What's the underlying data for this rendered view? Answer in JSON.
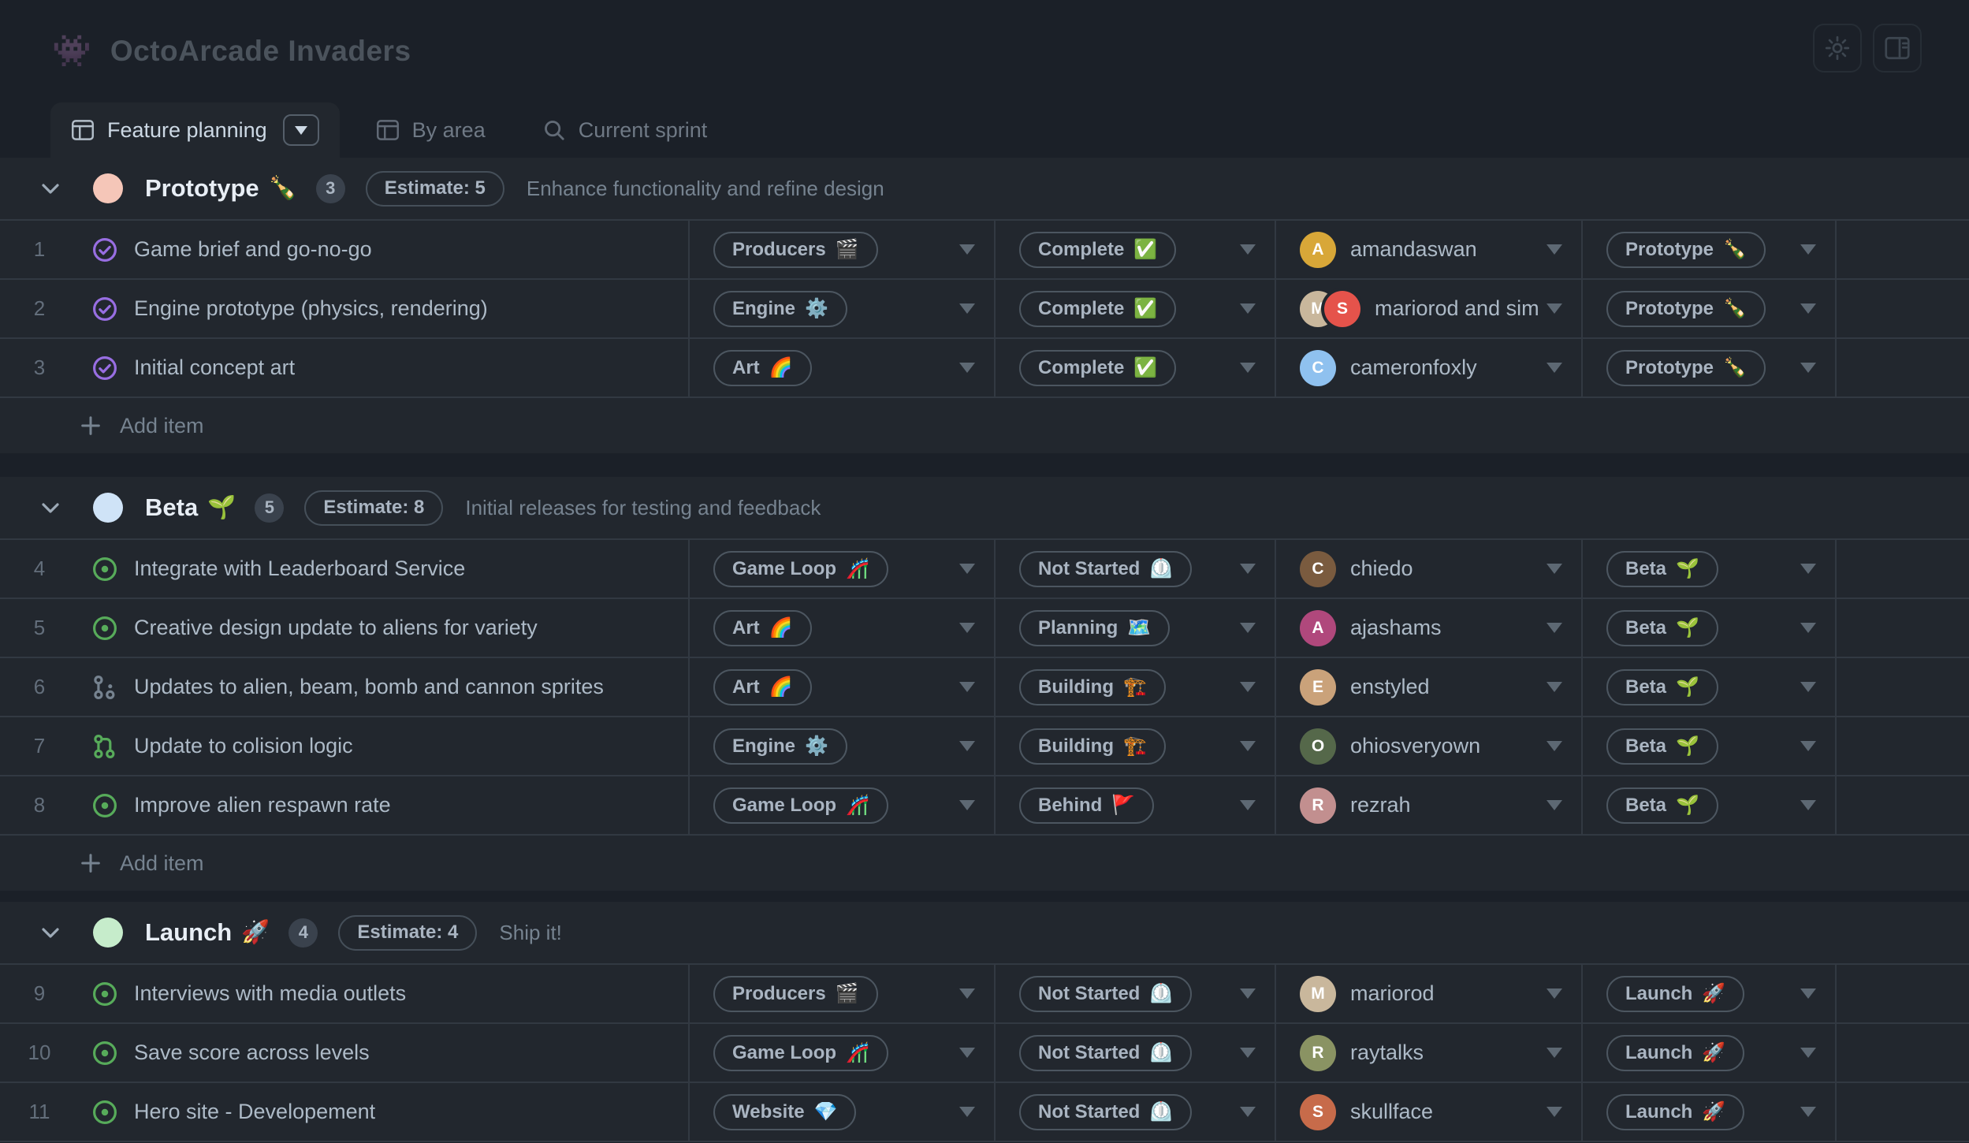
{
  "header": {
    "logo_emoji": "👾",
    "title": "OctoArcade Invaders"
  },
  "toolbar": {
    "buttons": [
      {
        "icon": "gear-icon"
      },
      {
        "icon": "side-panel-icon"
      }
    ]
  },
  "tabs": [
    {
      "label": "Feature planning",
      "icon": "table-icon",
      "active": true,
      "has_dropdown": true
    },
    {
      "label": "By area",
      "icon": "table-icon",
      "active": false
    },
    {
      "label": "Current sprint",
      "icon": "search-icon",
      "active": false
    }
  ],
  "labels": {
    "add_item": "Add item"
  },
  "colors": {
    "page_bg": "#1b2028",
    "surface": "#22272e",
    "divider": "#323942",
    "pill_border": "#4c5660",
    "text_primary": "#adbac7",
    "text_muted": "#768390",
    "issue_closed": "#986ee2",
    "issue_open": "#57ab5a",
    "pr_draft": "#768390"
  },
  "groups": [
    {
      "name": "Prototype",
      "emoji": "🍾",
      "dot_color": "#f5c6b8",
      "count": "3",
      "estimate_label": "Estimate: 5",
      "description": "Enhance functionality and refine design",
      "show_add_item": true,
      "rows": [
        {
          "num": "1",
          "state_icon": "issue-closed",
          "title": "Game brief and go-no-go",
          "team": {
            "label": "Producers",
            "emoji": "🎬"
          },
          "status": {
            "label": "Complete",
            "emoji": "✅"
          },
          "assignee": {
            "label": "amandaswan",
            "avatars": [
              {
                "initial": "A",
                "color": "#d8a738"
              }
            ]
          },
          "stage": {
            "label": "Prototype",
            "emoji": "🍾"
          }
        },
        {
          "num": "2",
          "state_icon": "issue-closed",
          "title": "Engine prototype (physics, rendering)",
          "team": {
            "label": "Engine",
            "emoji": "⚙️"
          },
          "status": {
            "label": "Complete",
            "emoji": "✅"
          },
          "assignee": {
            "label": "mariorod and sim",
            "avatars": [
              {
                "initial": "M",
                "color": "#c9b79c"
              },
              {
                "initial": "S",
                "color": "#e5534b"
              }
            ]
          },
          "stage": {
            "label": "Prototype",
            "emoji": "🍾"
          }
        },
        {
          "num": "3",
          "state_icon": "issue-closed",
          "title": "Initial concept art",
          "team": {
            "label": "Art",
            "emoji": "🌈"
          },
          "status": {
            "label": "Complete",
            "emoji": "✅"
          },
          "assignee": {
            "label": "cameronfoxly",
            "avatars": [
              {
                "initial": "C",
                "color": "#8fc1ef"
              }
            ]
          },
          "stage": {
            "label": "Prototype",
            "emoji": "🍾"
          }
        }
      ]
    },
    {
      "name": "Beta",
      "emoji": "🌱",
      "dot_color": "#cfe3f7",
      "count": "5",
      "estimate_label": "Estimate: 8",
      "description": "Initial releases for testing and feedback",
      "show_add_item": true,
      "rows": [
        {
          "num": "4",
          "state_icon": "issue-open",
          "title": "Integrate with Leaderboard Service",
          "team": {
            "label": "Game Loop",
            "emoji": "🎢"
          },
          "status": {
            "label": "Not Started",
            "emoji": "⏲️"
          },
          "assignee": {
            "label": "chiedo",
            "avatars": [
              {
                "initial": "C",
                "color": "#7a5b3f"
              }
            ]
          },
          "stage": {
            "label": "Beta",
            "emoji": "🌱"
          }
        },
        {
          "num": "5",
          "state_icon": "issue-open",
          "title": "Creative design update to aliens for variety",
          "team": {
            "label": "Art",
            "emoji": "🌈"
          },
          "status": {
            "label": "Planning",
            "emoji": "🗺️"
          },
          "assignee": {
            "label": "ajashams",
            "avatars": [
              {
                "initial": "A",
                "color": "#b0487c"
              }
            ]
          },
          "stage": {
            "label": "Beta",
            "emoji": "🌱"
          }
        },
        {
          "num": "6",
          "state_icon": "pr-draft",
          "title": "Updates to alien, beam, bomb and cannon sprites",
          "team": {
            "label": "Art",
            "emoji": "🌈"
          },
          "status": {
            "label": "Building",
            "emoji": "🏗️"
          },
          "assignee": {
            "label": "enstyled",
            "avatars": [
              {
                "initial": "E",
                "color": "#caa27a"
              }
            ]
          },
          "stage": {
            "label": "Beta",
            "emoji": "🌱"
          }
        },
        {
          "num": "7",
          "state_icon": "pr-open",
          "title": "Update to colision logic",
          "team": {
            "label": "Engine",
            "emoji": "⚙️"
          },
          "status": {
            "label": "Building",
            "emoji": "🏗️"
          },
          "assignee": {
            "label": "ohiosveryown",
            "avatars": [
              {
                "initial": "O",
                "color": "#55684a"
              }
            ]
          },
          "stage": {
            "label": "Beta",
            "emoji": "🌱"
          }
        },
        {
          "num": "8",
          "state_icon": "issue-open",
          "title": "Improve alien respawn rate",
          "team": {
            "label": "Game Loop",
            "emoji": "🎢"
          },
          "status": {
            "label": "Behind",
            "emoji": "🚩"
          },
          "assignee": {
            "label": "rezrah",
            "avatars": [
              {
                "initial": "R",
                "color": "#c28f8f"
              }
            ]
          },
          "stage": {
            "label": "Beta",
            "emoji": "🌱"
          }
        }
      ]
    },
    {
      "name": "Launch",
      "emoji": "🚀",
      "dot_color": "#c6eccb",
      "count": "4",
      "estimate_label": "Estimate: 4",
      "description": "Ship it!",
      "show_add_item": false,
      "rows": [
        {
          "num": "9",
          "state_icon": "issue-open",
          "title": "Interviews with media outlets",
          "team": {
            "label": "Producers",
            "emoji": "🎬"
          },
          "status": {
            "label": "Not Started",
            "emoji": "⏲️"
          },
          "assignee": {
            "label": "mariorod",
            "avatars": [
              {
                "initial": "M",
                "color": "#c9b79c"
              }
            ]
          },
          "stage": {
            "label": "Launch",
            "emoji": "🚀"
          }
        },
        {
          "num": "10",
          "state_icon": "issue-open",
          "title": "Save score across levels",
          "team": {
            "label": "Game Loop",
            "emoji": "🎢"
          },
          "status": {
            "label": "Not Started",
            "emoji": "⏲️"
          },
          "assignee": {
            "label": "raytalks",
            "avatars": [
              {
                "initial": "R",
                "color": "#8a9363"
              }
            ]
          },
          "stage": {
            "label": "Launch",
            "emoji": "🚀"
          }
        },
        {
          "num": "11",
          "state_icon": "issue-open",
          "title": "Hero site - Developement",
          "team": {
            "label": "Website",
            "emoji": "💎"
          },
          "status": {
            "label": "Not Started",
            "emoji": "⏲️"
          },
          "assignee": {
            "label": "skullface",
            "avatars": [
              {
                "initial": "S",
                "color": "#c76b4a"
              }
            ]
          },
          "stage": {
            "label": "Launch",
            "emoji": "🚀"
          }
        }
      ]
    }
  ]
}
